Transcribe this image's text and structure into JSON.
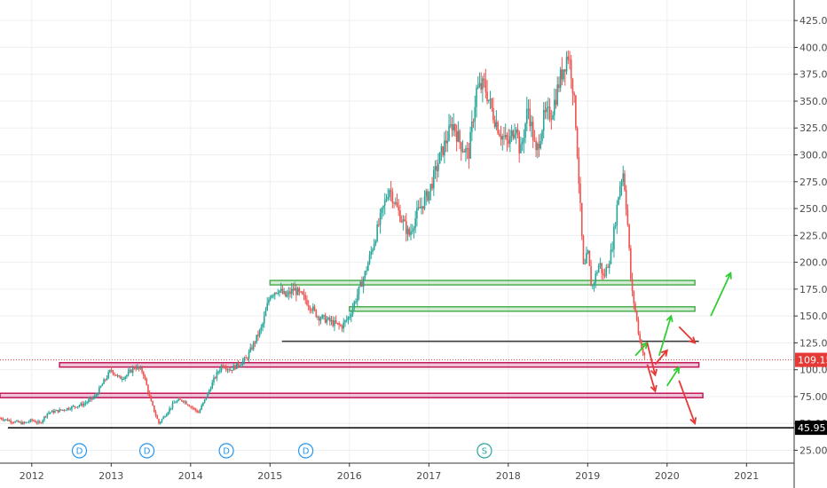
{
  "chart_data": {
    "type": "candlestick",
    "ylim": [
      13,
      440
    ],
    "x_range": [
      2011.6,
      2021.6
    ],
    "x_ticks": [
      {
        "label": "2012",
        "value": 2012
      },
      {
        "label": "2013",
        "value": 2013
      },
      {
        "label": "2014",
        "value": 2014
      },
      {
        "label": "2015",
        "value": 2015
      },
      {
        "label": "2016",
        "value": 2016
      },
      {
        "label": "2017",
        "value": 2017
      },
      {
        "label": "2018",
        "value": 2018
      },
      {
        "label": "2019",
        "value": 2019
      },
      {
        "label": "2020",
        "value": 2020
      },
      {
        "label": "2021",
        "value": 2021
      }
    ],
    "y_ticks": [
      "425.00",
      "400.00",
      "375.00",
      "350.00",
      "325.00",
      "300.00",
      "275.00",
      "250.00",
      "225.00",
      "200.00",
      "175.00",
      "150.00",
      "125.00",
      "100.00",
      "75.00",
      "50.00",
      "25.00"
    ],
    "price_path": [
      [
        2011.6,
        55
      ],
      [
        2011.75,
        52
      ],
      [
        2011.9,
        50
      ],
      [
        2012.0,
        53
      ],
      [
        2012.1,
        50
      ],
      [
        2012.2,
        60
      ],
      [
        2012.35,
        62
      ],
      [
        2012.5,
        65
      ],
      [
        2012.65,
        68
      ],
      [
        2012.8,
        75
      ],
      [
        2012.9,
        88
      ],
      [
        2013.0,
        100
      ],
      [
        2013.1,
        92
      ],
      [
        2013.2,
        95
      ],
      [
        2013.3,
        103
      ],
      [
        2013.4,
        98
      ],
      [
        2013.5,
        70
      ],
      [
        2013.6,
        50
      ],
      [
        2013.7,
        60
      ],
      [
        2013.8,
        70
      ],
      [
        2013.9,
        72
      ],
      [
        2014.0,
        66
      ],
      [
        2014.1,
        60
      ],
      [
        2014.2,
        75
      ],
      [
        2014.3,
        92
      ],
      [
        2014.4,
        105
      ],
      [
        2014.5,
        100
      ],
      [
        2014.6,
        105
      ],
      [
        2014.7,
        110
      ],
      [
        2014.8,
        125
      ],
      [
        2014.9,
        140
      ],
      [
        2015.0,
        170
      ],
      [
        2015.1,
        175
      ],
      [
        2015.2,
        168
      ],
      [
        2015.3,
        175
      ],
      [
        2015.45,
        165
      ],
      [
        2015.6,
        150
      ],
      [
        2015.75,
        145
      ],
      [
        2015.9,
        140
      ],
      [
        2016.0,
        150
      ],
      [
        2016.1,
        170
      ],
      [
        2016.2,
        190
      ],
      [
        2016.35,
        230
      ],
      [
        2016.5,
        270
      ],
      [
        2016.6,
        250
      ],
      [
        2016.75,
        225
      ],
      [
        2016.85,
        245
      ],
      [
        2017.0,
        265
      ],
      [
        2017.15,
        300
      ],
      [
        2017.3,
        330
      ],
      [
        2017.4,
        310
      ],
      [
        2017.5,
        300
      ],
      [
        2017.6,
        360
      ],
      [
        2017.7,
        365
      ],
      [
        2017.8,
        340
      ],
      [
        2017.9,
        320
      ],
      [
        2018.0,
        310
      ],
      [
        2018.1,
        330
      ],
      [
        2018.15,
        300
      ],
      [
        2018.25,
        345
      ],
      [
        2018.35,
        300
      ],
      [
        2018.45,
        335
      ],
      [
        2018.55,
        340
      ],
      [
        2018.65,
        370
      ],
      [
        2018.75,
        395
      ],
      [
        2018.8,
        375
      ],
      [
        2018.85,
        330
      ],
      [
        2018.9,
        260
      ],
      [
        2018.95,
        190
      ],
      [
        2019.0,
        210
      ],
      [
        2019.05,
        175
      ],
      [
        2019.15,
        200
      ],
      [
        2019.2,
        185
      ],
      [
        2019.3,
        210
      ],
      [
        2019.35,
        240
      ],
      [
        2019.4,
        270
      ],
      [
        2019.45,
        285
      ],
      [
        2019.5,
        240
      ],
      [
        2019.55,
        175
      ],
      [
        2019.6,
        155
      ],
      [
        2019.65,
        130
      ],
      [
        2019.7,
        115
      ],
      [
        2019.73,
        109.15
      ]
    ],
    "horizontal_levels": [
      {
        "price": 181,
        "x_start": 2015.0,
        "x_end": 2020.35,
        "color": "#4caf50",
        "style": "band"
      },
      {
        "price": 156.5,
        "x_start": 2016.0,
        "x_end": 2020.35,
        "color": "#4caf50",
        "style": "band"
      },
      {
        "price": 126.5,
        "x_start": 2015.15,
        "x_end": 2020.4,
        "color": "#333333",
        "style": "line"
      },
      {
        "price": 104.5,
        "x_start": 2012.35,
        "x_end": 2020.4,
        "color": "#c2185b",
        "style": "band"
      },
      {
        "price": 76,
        "x_start": 2011.6,
        "x_end": 2020.45,
        "color": "#c2185b",
        "style": "band"
      },
      {
        "price": 45.95,
        "x_start": 2011.7,
        "x_end": 2021.6,
        "color": "#000000",
        "style": "line"
      }
    ],
    "arrows": [
      {
        "from": [
          2019.6,
          113
        ],
        "to": [
          2019.75,
          125
        ],
        "color": "#33cc33"
      },
      {
        "from": [
          2019.75,
          125
        ],
        "to": [
          2019.85,
          95
        ],
        "color": "#e53935"
      },
      {
        "from": [
          2019.75,
          105
        ],
        "to": [
          2019.85,
          80
        ],
        "color": "#e53935"
      },
      {
        "from": [
          2019.9,
          113
        ],
        "to": [
          2020.05,
          150
        ],
        "color": "#33cc33"
      },
      {
        "from": [
          2019.85,
          105
        ],
        "to": [
          2020.0,
          118
        ],
        "color": "#e53935"
      },
      {
        "from": [
          2020.0,
          85
        ],
        "to": [
          2020.15,
          102
        ],
        "color": "#33cc33"
      },
      {
        "from": [
          2020.15,
          140
        ],
        "to": [
          2020.35,
          125
        ],
        "color": "#e53935"
      },
      {
        "from": [
          2020.15,
          90
        ],
        "to": [
          2020.35,
          50
        ],
        "color": "#e53935"
      },
      {
        "from": [
          2020.55,
          150
        ],
        "to": [
          2020.8,
          190
        ],
        "color": "#33cc33"
      }
    ],
    "event_badges": [
      {
        "label": "D",
        "x": 2012.6
      },
      {
        "label": "D",
        "x": 2013.45
      },
      {
        "label": "D",
        "x": 2014.45
      },
      {
        "label": "D",
        "x": 2015.45
      },
      {
        "label": "S",
        "x": 2017.7
      }
    ],
    "price_labels": [
      {
        "label": "109.15",
        "price": 109.15,
        "color": "#e53935"
      },
      {
        "label": "45.95",
        "price": 45.95,
        "color": "#000000"
      }
    ],
    "colors": {
      "up": "#26a69a",
      "down": "#ef5350",
      "grid": "#eceff1",
      "axis": "#333333"
    }
  }
}
